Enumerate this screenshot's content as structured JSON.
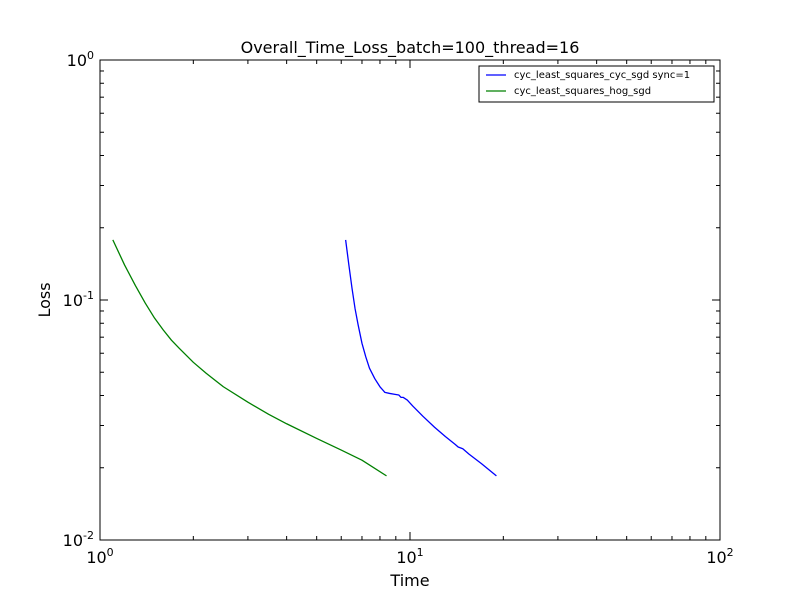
{
  "chart_data": {
    "type": "line",
    "title": "Overall_Time_Loss_batch=100_thread=16",
    "xlabel": "Time",
    "ylabel": "Loss",
    "xscale": "log",
    "yscale": "log",
    "xlim": [
      1,
      100
    ],
    "ylim": [
      0.01,
      1
    ],
    "x_ticks": [
      {
        "value": 1,
        "base": "10",
        "exp": "0"
      },
      {
        "value": 10,
        "base": "10",
        "exp": "1"
      },
      {
        "value": 100,
        "base": "10",
        "exp": "2"
      }
    ],
    "y_ticks": [
      {
        "value": 0.01,
        "base": "10",
        "exp": "-2"
      },
      {
        "value": 0.1,
        "base": "10",
        "exp": "-1"
      },
      {
        "value": 1,
        "base": "10",
        "exp": "0"
      }
    ],
    "grid": false,
    "legend": "top-right",
    "series": [
      {
        "name": "cyc_least_squares_cyc_sgd sync=1",
        "color": "#0000ff",
        "points": [
          [
            6.2,
            0.178
          ],
          [
            6.35,
            0.14
          ],
          [
            6.5,
            0.112
          ],
          [
            6.65,
            0.092
          ],
          [
            6.8,
            0.079
          ],
          [
            7.0,
            0.066
          ],
          [
            7.2,
            0.058
          ],
          [
            7.4,
            0.052
          ],
          [
            7.7,
            0.047
          ],
          [
            8.0,
            0.0435
          ],
          [
            8.3,
            0.0412
          ],
          [
            8.6,
            0.0408
          ],
          [
            8.9,
            0.0405
          ],
          [
            9.2,
            0.0402
          ],
          [
            9.35,
            0.0393
          ],
          [
            9.5,
            0.0393
          ],
          [
            9.8,
            0.0383
          ],
          [
            10.2,
            0.0362
          ],
          [
            11.0,
            0.0328
          ],
          [
            12.0,
            0.0295
          ],
          [
            13.0,
            0.027
          ],
          [
            14.0,
            0.025
          ],
          [
            14.3,
            0.0244
          ],
          [
            14.8,
            0.024
          ],
          [
            15.5,
            0.0228
          ],
          [
            17.0,
            0.0208
          ],
          [
            19.0,
            0.0185
          ]
        ]
      },
      {
        "name": "cyc_least_squares_hog_sgd",
        "color": "#008000",
        "points": [
          [
            1.1,
            0.178
          ],
          [
            1.2,
            0.14
          ],
          [
            1.3,
            0.115
          ],
          [
            1.4,
            0.097
          ],
          [
            1.5,
            0.084
          ],
          [
            1.6,
            0.075
          ],
          [
            1.7,
            0.068
          ],
          [
            1.8,
            0.063
          ],
          [
            2.0,
            0.055
          ],
          [
            2.2,
            0.0495
          ],
          [
            2.5,
            0.0435
          ],
          [
            3.0,
            0.0375
          ],
          [
            3.5,
            0.0334
          ],
          [
            4.0,
            0.0305
          ],
          [
            5.0,
            0.0265
          ],
          [
            6.0,
            0.0237
          ],
          [
            7.0,
            0.0215
          ],
          [
            8.4,
            0.0185
          ]
        ]
      }
    ]
  }
}
